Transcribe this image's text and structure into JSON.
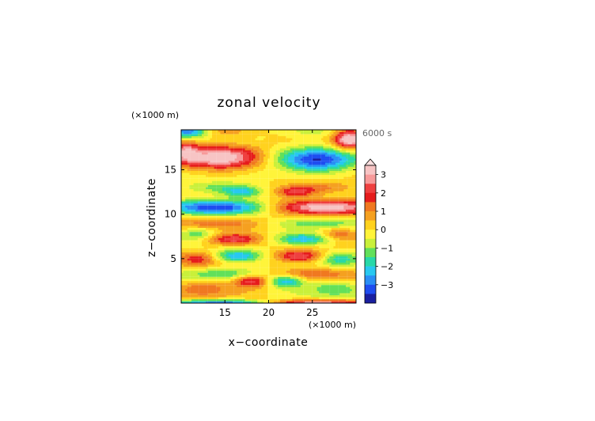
{
  "chart_data": {
    "type": "heatmap",
    "title": "zonal velocity",
    "xlabel": "x−coordinate",
    "ylabel": "z−coordinate",
    "x_unit": "(×1000 m)",
    "y_unit": "(×1000 m)",
    "time_label": "6000 s",
    "xlim": [
      10,
      30
    ],
    "ylim": [
      0,
      19.5
    ],
    "x_ticks": [
      15,
      20,
      25
    ],
    "y_ticks": [
      5,
      10,
      15
    ],
    "x_tick_labels": [
      "15",
      "20",
      "25"
    ],
    "y_tick_labels": [
      "5",
      "10",
      "15"
    ],
    "grid": true,
    "colorbar": {
      "position": "right",
      "ticks": [
        3,
        2,
        1,
        0,
        -1,
        -2,
        -3
      ],
      "tick_labels": [
        "3",
        "2",
        "1",
        "0",
        "−1",
        "−2",
        "−3"
      ],
      "levels": [
        3.5,
        3.0,
        2.5,
        2.0,
        1.5,
        1.0,
        0.5,
        0.0,
        -0.5,
        -1.0,
        -1.5,
        -2.0,
        -2.5,
        -3.0,
        -3.5
      ],
      "colors": [
        "#f7c4c4",
        "#f79a9a",
        "#ef4040",
        "#e61c1c",
        "#f07820",
        "#f5a020",
        "#ffd21e",
        "#fff43a",
        "#c9f03a",
        "#62e05a",
        "#28d8a8",
        "#28c8f0",
        "#2a8ef5",
        "#1f4df0",
        "#1a1fa0"
      ],
      "extend_top": true
    },
    "features": [
      {
        "x": 14.5,
        "z": 16.3,
        "u": 3.2,
        "sx": 3.2,
        "sz": 1.0
      },
      {
        "x": 25.5,
        "z": 16.0,
        "u": -3.3,
        "sx": 3.2,
        "sz": 1.0
      },
      {
        "x": 10.6,
        "z": 17.2,
        "u": 2.0,
        "sx": 1.0,
        "sz": 1.0
      },
      {
        "x": 29.2,
        "z": 18.4,
        "u": 3.5,
        "sx": 1.2,
        "sz": 0.8
      },
      {
        "x": 10.8,
        "z": 19.3,
        "u": -3.0,
        "sx": 1.5,
        "sz": 0.5
      },
      {
        "x": 15.0,
        "z": 19.2,
        "u": 0.9,
        "sx": 2.5,
        "sz": 0.6
      },
      {
        "x": 25.0,
        "z": 19.2,
        "u": -0.9,
        "sx": 2.5,
        "sz": 0.6
      },
      {
        "x": 14.5,
        "z": 13.0,
        "u": -1.6,
        "sx": 3.5,
        "sz": 0.5
      },
      {
        "x": 25.5,
        "z": 13.0,
        "u": 1.6,
        "sx": 3.5,
        "sz": 0.5
      },
      {
        "x": 14.0,
        "z": 10.8,
        "u": -3.0,
        "sx": 4.0,
        "sz": 0.6
      },
      {
        "x": 26.5,
        "z": 10.8,
        "u": 3.0,
        "sx": 4.0,
        "sz": 0.6
      },
      {
        "x": 23.0,
        "z": 12.5,
        "u": 2.0,
        "sx": 1.5,
        "sz": 0.4
      },
      {
        "x": 17.0,
        "z": 12.5,
        "u": -2.0,
        "sx": 1.5,
        "sz": 0.4
      },
      {
        "x": 14.0,
        "z": 9.0,
        "u": 1.0,
        "sx": 3.0,
        "sz": 0.4
      },
      {
        "x": 26.0,
        "z": 9.0,
        "u": -1.0,
        "sx": 3.0,
        "sz": 0.4
      },
      {
        "x": 16.0,
        "z": 7.2,
        "u": 2.7,
        "sx": 2.5,
        "sz": 0.5
      },
      {
        "x": 24.0,
        "z": 7.2,
        "u": -2.7,
        "sx": 2.5,
        "sz": 0.5
      },
      {
        "x": 12.0,
        "z": 7.8,
        "u": -1.5,
        "sx": 1.5,
        "sz": 0.5
      },
      {
        "x": 28.0,
        "z": 7.8,
        "u": 1.5,
        "sx": 1.5,
        "sz": 0.5
      },
      {
        "x": 16.5,
        "z": 5.3,
        "u": -2.8,
        "sx": 2.0,
        "sz": 0.5
      },
      {
        "x": 23.5,
        "z": 5.3,
        "u": 2.8,
        "sx": 2.0,
        "sz": 0.5
      },
      {
        "x": 12.0,
        "z": 5.0,
        "u": 1.5,
        "sx": 1.5,
        "sz": 0.6
      },
      {
        "x": 28.0,
        "z": 5.0,
        "u": -1.5,
        "sx": 1.5,
        "sz": 0.6
      },
      {
        "x": 15.0,
        "z": 3.3,
        "u": -1.2,
        "sx": 3.0,
        "sz": 0.5
      },
      {
        "x": 25.0,
        "z": 3.3,
        "u": 1.2,
        "sx": 3.0,
        "sz": 0.5
      },
      {
        "x": 18.0,
        "z": 2.5,
        "u": 2.7,
        "sx": 1.5,
        "sz": 0.5
      },
      {
        "x": 22.0,
        "z": 2.5,
        "u": -2.7,
        "sx": 1.5,
        "sz": 0.5
      },
      {
        "x": 12.5,
        "z": 1.8,
        "u": 1.3,
        "sx": 2.0,
        "sz": 0.6
      },
      {
        "x": 27.5,
        "z": 1.8,
        "u": -1.3,
        "sx": 2.0,
        "sz": 0.6
      },
      {
        "x": 15.0,
        "z": 0.1,
        "u": -3.0,
        "sx": 4.5,
        "sz": 0.25
      },
      {
        "x": 25.0,
        "z": 0.1,
        "u": 3.0,
        "sx": 4.5,
        "sz": 0.25
      }
    ]
  }
}
